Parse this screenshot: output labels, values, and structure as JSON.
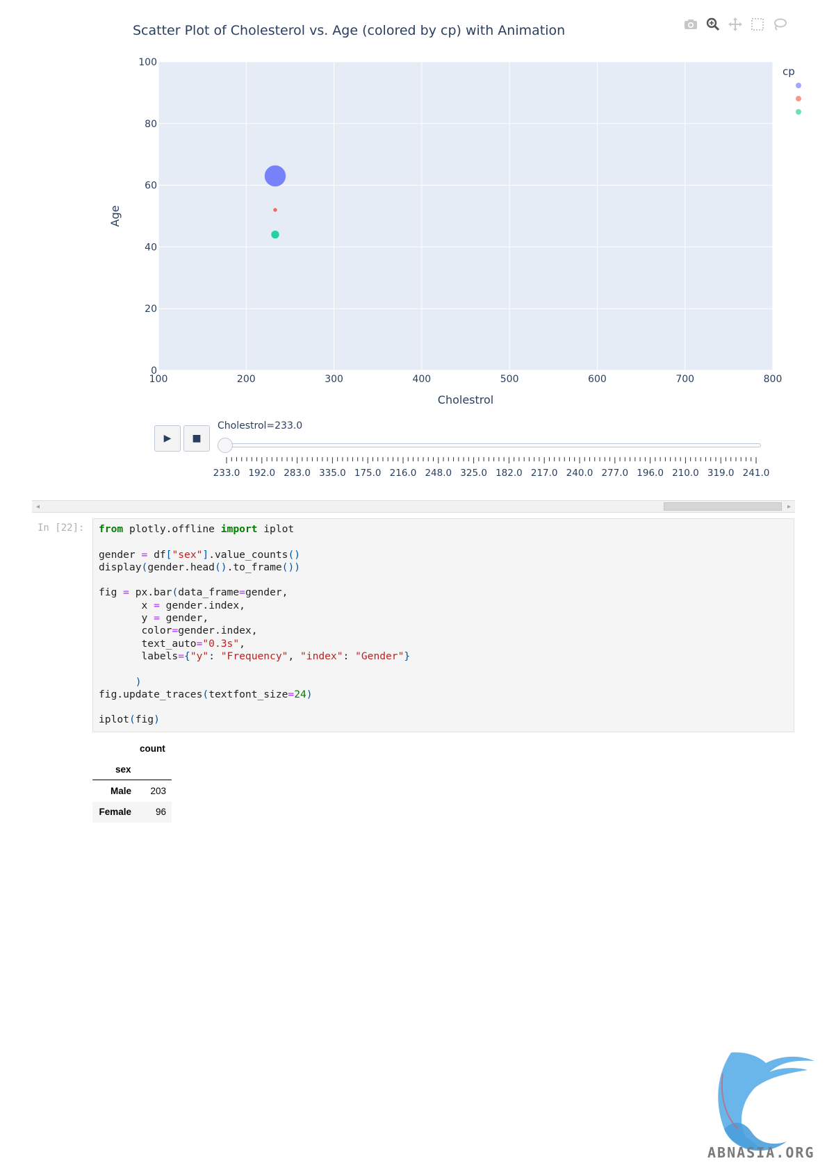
{
  "chart_data": {
    "type": "scatter",
    "title": "Scatter Plot of Cholesterol vs. Age (colored by cp) with Animation",
    "xlabel": "Cholestrol",
    "ylabel": "Age",
    "xlim": [
      100,
      800
    ],
    "ylim": [
      0,
      100
    ],
    "x_ticks": [
      "100",
      "200",
      "300",
      "400",
      "500",
      "600",
      "700",
      "800"
    ],
    "y_ticks": [
      "0",
      "20",
      "40",
      "60",
      "80",
      "100"
    ],
    "grid": true,
    "legend_title": "cp",
    "legend_placement": "top-right",
    "series": [
      {
        "color": "#636efa",
        "points": [
          {
            "x": 233,
            "y": 63,
            "size": "large"
          }
        ]
      },
      {
        "color": "#ef553b",
        "points": [
          {
            "x": 233,
            "y": 52,
            "size": "tiny"
          }
        ]
      },
      {
        "color": "#00cc96",
        "points": [
          {
            "x": 233,
            "y": 44,
            "size": "small"
          }
        ]
      }
    ],
    "animation_frame": {
      "current_label": "Cholestrol=233.0",
      "frame_labels": [
        "233.0",
        "192.0",
        "283.0",
        "335.0",
        "175.0",
        "216.0",
        "248.0",
        "325.0",
        "182.0",
        "217.0",
        "240.0",
        "277.0",
        "196.0",
        "210.0",
        "319.0",
        "241.0"
      ],
      "current_index": 0
    }
  },
  "controls": {
    "play_icon": "play-icon",
    "stop_icon": "stop-icon",
    "play_glyph": "▶",
    "stop_glyph": "■"
  },
  "modebar": {
    "icons": [
      "camera-icon",
      "zoom-icon",
      "pan-icon",
      "box-select-icon",
      "lasso-select-icon"
    ]
  },
  "notebook": {
    "prompt": "In [22]:",
    "code": [
      [
        {
          "t": "from",
          "c": "kw"
        },
        {
          "t": " plotly.offline "
        },
        {
          "t": "import",
          "c": "kw"
        },
        {
          "t": " iplot"
        }
      ],
      [],
      [
        {
          "t": "gender "
        },
        {
          "t": "=",
          "c": "op"
        },
        {
          "t": " df"
        },
        {
          "t": "[",
          "c": "pn"
        },
        {
          "t": "\"sex\"",
          "c": "str"
        },
        {
          "t": "]",
          "c": "pn"
        },
        {
          "t": "."
        },
        {
          "t": "value_counts"
        },
        {
          "t": "()",
          "c": "pn"
        }
      ],
      [
        {
          "t": "display"
        },
        {
          "t": "(",
          "c": "pn"
        },
        {
          "t": "gender"
        },
        {
          "t": "."
        },
        {
          "t": "head"
        },
        {
          "t": "()",
          "c": "pn"
        },
        {
          "t": "."
        },
        {
          "t": "to_frame"
        },
        {
          "t": "())",
          "c": "pn"
        }
      ],
      [],
      [
        {
          "t": "fig "
        },
        {
          "t": "=",
          "c": "op"
        },
        {
          "t": " px"
        },
        {
          "t": "."
        },
        {
          "t": "bar"
        },
        {
          "t": "(",
          "c": "pn"
        },
        {
          "t": "data_frame"
        },
        {
          "t": "=",
          "c": "op"
        },
        {
          "t": "gender"
        },
        {
          "t": ","
        }
      ],
      [
        {
          "t": "       x "
        },
        {
          "t": "=",
          "c": "op"
        },
        {
          "t": " gender"
        },
        {
          "t": "."
        },
        {
          "t": "index"
        },
        {
          "t": ","
        }
      ],
      [
        {
          "t": "       y "
        },
        {
          "t": "=",
          "c": "op"
        },
        {
          "t": " gender"
        },
        {
          "t": ","
        }
      ],
      [
        {
          "t": "       color"
        },
        {
          "t": "=",
          "c": "op"
        },
        {
          "t": "gender"
        },
        {
          "t": "."
        },
        {
          "t": "index"
        },
        {
          "t": ","
        }
      ],
      [
        {
          "t": "       text_auto"
        },
        {
          "t": "=",
          "c": "op"
        },
        {
          "t": "\"0.3s\"",
          "c": "str"
        },
        {
          "t": ","
        }
      ],
      [
        {
          "t": "       labels"
        },
        {
          "t": "=",
          "c": "op"
        },
        {
          "t": "{",
          "c": "pn"
        },
        {
          "t": "\"y\"",
          "c": "str"
        },
        {
          "t": ": "
        },
        {
          "t": "\"Frequency\"",
          "c": "str"
        },
        {
          "t": ", "
        },
        {
          "t": "\"index\"",
          "c": "str"
        },
        {
          "t": ": "
        },
        {
          "t": "\"Gender\"",
          "c": "str"
        },
        {
          "t": "}",
          "c": "pn"
        }
      ],
      [],
      [
        {
          "t": "      "
        },
        {
          "t": ")",
          "c": "pn"
        }
      ],
      [
        {
          "t": "fig"
        },
        {
          "t": "."
        },
        {
          "t": "update_traces"
        },
        {
          "t": "(",
          "c": "pn"
        },
        {
          "t": "textfont_size"
        },
        {
          "t": "=",
          "c": "op"
        },
        {
          "t": "24",
          "c": "num"
        },
        {
          "t": ")",
          "c": "pn"
        }
      ],
      [],
      [
        {
          "t": "iplot"
        },
        {
          "t": "(",
          "c": "pn"
        },
        {
          "t": "fig"
        },
        {
          "t": ")",
          "c": "pn"
        }
      ]
    ]
  },
  "dataframe": {
    "column": "count",
    "index_name": "sex",
    "rows": [
      {
        "index": "Male",
        "value": "203"
      },
      {
        "index": "Female",
        "value": "96"
      }
    ]
  },
  "watermark": {
    "text": "ABNASIA.ORG"
  }
}
